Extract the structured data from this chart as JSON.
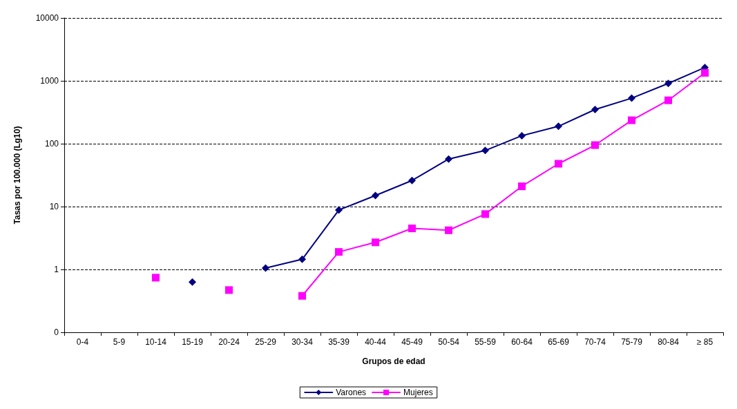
{
  "chart_data": {
    "type": "line",
    "xlabel": "Grupos de edad",
    "ylabel": "Tasas por 100.000 (Lg10)",
    "categories": [
      "0-4",
      "5-9",
      "10-14",
      "15-19",
      "20-24",
      "25-29",
      "30-34",
      "35-39",
      "40-44",
      "45-49",
      "50-54",
      "55-59",
      "60-64",
      "65-69",
      "70-74",
      "75-79",
      "80-84",
      "≥ 85"
    ],
    "series": [
      {
        "name": "Varones",
        "color": "#000080",
        "marker": "diamond",
        "values": [
          null,
          null,
          null,
          0.63,
          null,
          1.05,
          1.45,
          8.8,
          15,
          26,
          57,
          78,
          134,
          189,
          350,
          530,
          910,
          1630
        ]
      },
      {
        "name": "Mujeres",
        "color": "#ff00ff",
        "marker": "square",
        "values": [
          null,
          null,
          0.74,
          null,
          0.47,
          null,
          0.38,
          1.9,
          2.7,
          4.5,
          4.2,
          7.6,
          21,
          48,
          95,
          236,
          490,
          1340
        ]
      }
    ],
    "log": "y",
    "ylim": [
      0.1,
      10000
    ],
    "yticks": [
      {
        "value": 0.1,
        "label": "0"
      },
      1,
      10,
      100,
      1000,
      10000
    ],
    "grid": "y",
    "legend": "bottom",
    "line_style": "solid"
  }
}
